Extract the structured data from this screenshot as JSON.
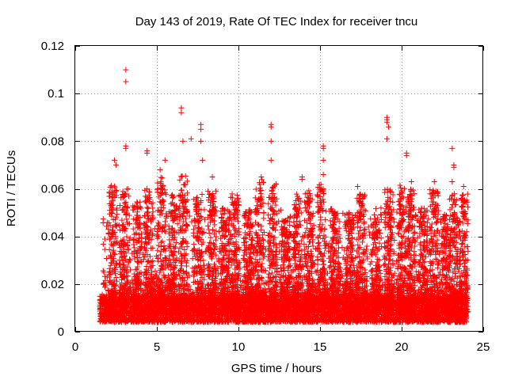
{
  "chart_data": {
    "type": "scatter",
    "title": "Day 143 of 2019, Rate Of TEC Index for receiver tncu",
    "xlabel": "GPS time / hours",
    "ylabel": "ROTI / TECUs",
    "xlim": [
      0,
      25
    ],
    "ylim": [
      0,
      0.12
    ],
    "xticks": [
      0,
      5,
      10,
      15,
      20,
      25
    ],
    "xtick_labels": [
      "0",
      "5",
      "10",
      "15",
      "20",
      "25"
    ],
    "yticks": [
      0,
      0.02,
      0.04,
      0.06,
      0.08,
      0.1,
      0.12
    ],
    "ytick_labels": [
      "0",
      "0.02",
      "0.04",
      "0.06",
      "0.08",
      "0.1",
      "0.12"
    ],
    "grid": true,
    "marker": "plus",
    "color": "#ff0000",
    "series": [
      {
        "name": "ROTI",
        "x_range": [
          1.5,
          24.0
        ],
        "baseline_range": [
          0.004,
          0.015
        ],
        "notable_points": [
          {
            "x": 3.1,
            "y": 0.11
          },
          {
            "x": 3.1,
            "y": 0.105
          },
          {
            "x": 3.1,
            "y": 0.078
          },
          {
            "x": 3.1,
            "y": 0.077
          },
          {
            "x": 2.4,
            "y": 0.072
          },
          {
            "x": 2.5,
            "y": 0.07
          },
          {
            "x": 4.4,
            "y": 0.076
          },
          {
            "x": 4.4,
            "y": 0.075
          },
          {
            "x": 6.5,
            "y": 0.094
          },
          {
            "x": 6.5,
            "y": 0.092
          },
          {
            "x": 6.6,
            "y": 0.08
          },
          {
            "x": 7.1,
            "y": 0.081
          },
          {
            "x": 7.7,
            "y": 0.087
          },
          {
            "x": 7.7,
            "y": 0.085
          },
          {
            "x": 7.7,
            "y": 0.08
          },
          {
            "x": 7.8,
            "y": 0.072
          },
          {
            "x": 12.0,
            "y": 0.087
          },
          {
            "x": 12.0,
            "y": 0.086
          },
          {
            "x": 12.0,
            "y": 0.08
          },
          {
            "x": 12.0,
            "y": 0.072
          },
          {
            "x": 15.2,
            "y": 0.078
          },
          {
            "x": 15.2,
            "y": 0.077
          },
          {
            "x": 15.2,
            "y": 0.072
          },
          {
            "x": 15.2,
            "y": 0.066
          },
          {
            "x": 19.1,
            "y": 0.09
          },
          {
            "x": 19.1,
            "y": 0.089
          },
          {
            "x": 19.1,
            "y": 0.088
          },
          {
            "x": 19.2,
            "y": 0.086
          },
          {
            "x": 19.1,
            "y": 0.081
          },
          {
            "x": 20.3,
            "y": 0.075
          },
          {
            "x": 20.3,
            "y": 0.074
          },
          {
            "x": 23.1,
            "y": 0.077
          },
          {
            "x": 23.2,
            "y": 0.07
          },
          {
            "x": 23.2,
            "y": 0.069
          },
          {
            "x": 23.1,
            "y": 0.063
          },
          {
            "x": 13.9,
            "y": 0.065
          },
          {
            "x": 13.9,
            "y": 0.064
          },
          {
            "x": 5.5,
            "y": 0.072
          },
          {
            "x": 5.2,
            "y": 0.068
          },
          {
            "x": 8.4,
            "y": 0.065
          },
          {
            "x": 11.4,
            "y": 0.065
          },
          {
            "x": 17.3,
            "y": 0.061
          },
          {
            "x": 20.6,
            "y": 0.063
          },
          {
            "x": 22.0,
            "y": 0.063
          },
          {
            "x": 23.8,
            "y": 0.061
          }
        ],
        "bursts": [
          {
            "center": 2.3,
            "peak": 0.062
          },
          {
            "center": 3.0,
            "peak": 0.06
          },
          {
            "center": 3.8,
            "peak": 0.055
          },
          {
            "center": 4.5,
            "peak": 0.06
          },
          {
            "center": 5.3,
            "peak": 0.065
          },
          {
            "center": 6.0,
            "peak": 0.058
          },
          {
            "center": 6.6,
            "peak": 0.066
          },
          {
            "center": 7.5,
            "peak": 0.058
          },
          {
            "center": 8.4,
            "peak": 0.06
          },
          {
            "center": 9.2,
            "peak": 0.052
          },
          {
            "center": 9.8,
            "peak": 0.058
          },
          {
            "center": 10.6,
            "peak": 0.052
          },
          {
            "center": 11.3,
            "peak": 0.064
          },
          {
            "center": 12.1,
            "peak": 0.062
          },
          {
            "center": 12.9,
            "peak": 0.048
          },
          {
            "center": 13.6,
            "peak": 0.058
          },
          {
            "center": 14.3,
            "peak": 0.06
          },
          {
            "center": 15.1,
            "peak": 0.062
          },
          {
            "center": 15.9,
            "peak": 0.052
          },
          {
            "center": 16.8,
            "peak": 0.05
          },
          {
            "center": 17.5,
            "peak": 0.058
          },
          {
            "center": 18.4,
            "peak": 0.05
          },
          {
            "center": 19.2,
            "peak": 0.06
          },
          {
            "center": 20.0,
            "peak": 0.062
          },
          {
            "center": 20.6,
            "peak": 0.06
          },
          {
            "center": 21.3,
            "peak": 0.052
          },
          {
            "center": 22.0,
            "peak": 0.06
          },
          {
            "center": 22.7,
            "peak": 0.05
          },
          {
            "center": 23.2,
            "peak": 0.058
          },
          {
            "center": 23.8,
            "peak": 0.058
          }
        ]
      }
    ]
  }
}
